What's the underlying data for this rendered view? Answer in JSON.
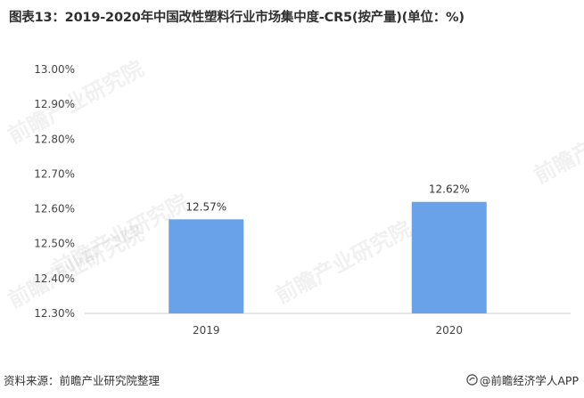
{
  "title": "图表13：2019-2020年中国改性塑料行业市场集中度-CR5(按产量)(单位：%)",
  "chart_data": {
    "type": "bar",
    "categories": [
      "2019",
      "2020"
    ],
    "values": [
      12.57,
      12.62
    ],
    "data_labels": [
      "12.57%",
      "12.62%"
    ],
    "yticks": [
      "12.30%",
      "12.40%",
      "12.50%",
      "12.60%",
      "12.70%",
      "12.80%",
      "12.90%",
      "13.00%"
    ],
    "ylim": [
      12.3,
      13.0
    ],
    "ystep": 0.1,
    "bar_color": "#6aa2ea",
    "grid": false,
    "legend": "none"
  },
  "footer": {
    "source": "资料来源：前瞻产业研究院整理",
    "brand": "@前瞻经济学人APP"
  },
  "watermark_text": "前瞻产业研究院"
}
